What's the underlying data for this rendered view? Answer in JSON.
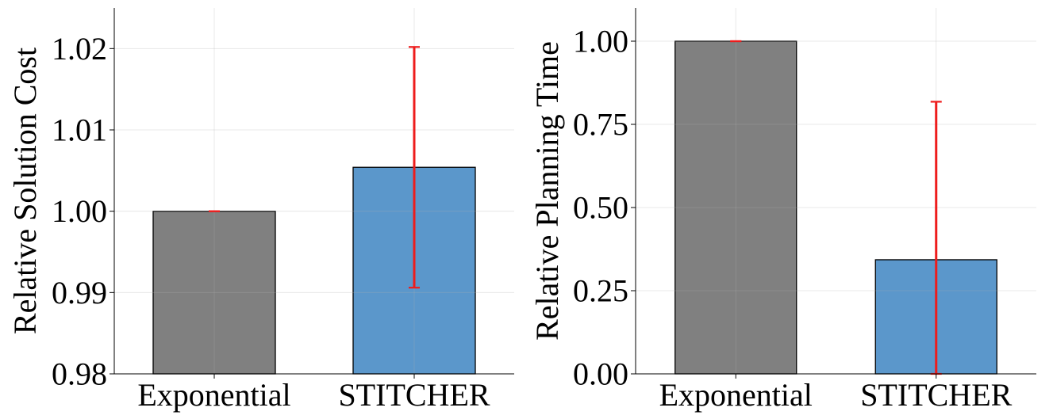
{
  "chart_data": [
    {
      "type": "bar",
      "categories": [
        "Exponential",
        "STITCHER"
      ],
      "values": [
        1.0,
        1.0054
      ],
      "error": [
        0.0,
        0.0148
      ],
      "colors": [
        "#808080",
        "#5b97cb"
      ],
      "error_color": "#ee1c1c",
      "ylabel": "Relative Solution Cost",
      "ylim": [
        0.98,
        1.025
      ],
      "yticks": [
        0.98,
        0.99,
        1.0,
        1.01,
        1.02
      ],
      "ytick_labels": [
        "0.98",
        "0.99",
        "1.00",
        "1.01",
        "1.02"
      ],
      "grid": true
    },
    {
      "type": "bar",
      "categories": [
        "Exponential",
        "STITCHER"
      ],
      "values": [
        1.0,
        0.343
      ],
      "error": [
        0.0,
        0.475
      ],
      "colors": [
        "#808080",
        "#5b97cb"
      ],
      "error_color": "#ee1c1c",
      "ylabel": "Relative Planning Time",
      "ylim": [
        0.0,
        1.1
      ],
      "yticks": [
        0.0,
        0.25,
        0.5,
        0.75,
        1.0
      ],
      "ytick_labels": [
        "0.00",
        "0.25",
        "0.50",
        "0.75",
        "1.00"
      ],
      "grid": true
    }
  ]
}
